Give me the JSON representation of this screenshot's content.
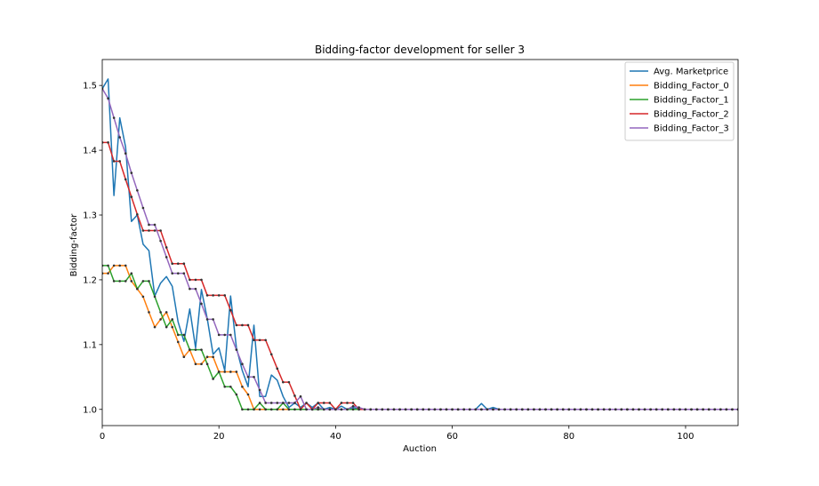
{
  "chart_data": {
    "type": "line",
    "title": "Bidding-factor development for seller 3",
    "xlabel": "Auction",
    "ylabel": "Bidding-factor",
    "xlim": [
      0,
      109
    ],
    "ylim": [
      0.975,
      1.54
    ],
    "xticks": [
      0,
      20,
      40,
      60,
      80,
      100
    ],
    "yticks": [
      1.0,
      1.1,
      1.2,
      1.3,
      1.4,
      1.5
    ],
    "xtick_labels": [
      "0",
      "20",
      "40",
      "60",
      "80",
      "100"
    ],
    "ytick_labels": [
      "1.0",
      "1.1",
      "1.2",
      "1.3",
      "1.4",
      "1.5"
    ],
    "grid": false,
    "legend_position": "top-right",
    "colors": {
      "Avg. Marketprice": "#1f77b4",
      "Bidding_Factor_0": "#ff7f0e",
      "Bidding_Factor_1": "#2ca02c",
      "Bidding_Factor_2": "#d62728",
      "Bidding_Factor_3": "#9467bd",
      "markers": "#333333"
    },
    "series": [
      {
        "name": "Avg. Marketprice",
        "markers": false,
        "points": [
          [
            0,
            1.495
          ],
          [
            1,
            1.51
          ],
          [
            2,
            1.33
          ],
          [
            3,
            1.45
          ],
          [
            4,
            1.405
          ],
          [
            5,
            1.29
          ],
          [
            6,
            1.3
          ],
          [
            7,
            1.255
          ],
          [
            8,
            1.245
          ],
          [
            9,
            1.175
          ],
          [
            10,
            1.195
          ],
          [
            11,
            1.205
          ],
          [
            12,
            1.19
          ],
          [
            13,
            1.135
          ],
          [
            14,
            1.105
          ],
          [
            15,
            1.155
          ],
          [
            16,
            1.095
          ],
          [
            17,
            1.185
          ],
          [
            18,
            1.14
          ],
          [
            19,
            1.085
          ],
          [
            20,
            1.095
          ],
          [
            21,
            1.06
          ],
          [
            22,
            1.175
          ],
          [
            23,
            1.095
          ],
          [
            24,
            1.06
          ],
          [
            25,
            1.035
          ],
          [
            26,
            1.13
          ],
          [
            27,
            1.02
          ],
          [
            28,
            1.02
          ],
          [
            29,
            1.053
          ],
          [
            30,
            1.045
          ],
          [
            31,
            1.02
          ],
          [
            32,
            1.003
          ],
          [
            33,
            1.01
          ],
          [
            34,
            1.003
          ],
          [
            35,
            1.01
          ],
          [
            36,
            1.003
          ],
          [
            37,
            1.01
          ],
          [
            38,
            1.0
          ],
          [
            39,
            1.003
          ],
          [
            40,
            1.0
          ],
          [
            41,
            1.005
          ],
          [
            42,
            1.0
          ],
          [
            43,
            1.003
          ],
          [
            44,
            1.0
          ],
          [
            64,
            1.0
          ],
          [
            65,
            1.009
          ],
          [
            66,
            1.0
          ],
          [
            67,
            1.003
          ],
          [
            68,
            1.0
          ],
          [
            109,
            1.0
          ]
        ]
      },
      {
        "name": "Bidding_Factor_0",
        "markers": true,
        "points": [
          [
            0,
            1.21
          ],
          [
            1,
            1.21
          ],
          [
            2,
            1.222
          ],
          [
            3,
            1.222
          ],
          [
            4,
            1.222
          ],
          [
            5,
            1.198
          ],
          [
            6,
            1.186
          ],
          [
            7,
            1.174
          ],
          [
            8,
            1.15
          ],
          [
            9,
            1.127
          ],
          [
            10,
            1.139
          ],
          [
            11,
            1.15
          ],
          [
            12,
            1.127
          ],
          [
            13,
            1.104
          ],
          [
            14,
            1.081
          ],
          [
            15,
            1.092
          ],
          [
            16,
            1.07
          ],
          [
            17,
            1.07
          ],
          [
            18,
            1.081
          ],
          [
            19,
            1.081
          ],
          [
            20,
            1.058
          ],
          [
            21,
            1.058
          ],
          [
            22,
            1.058
          ],
          [
            23,
            1.058
          ],
          [
            24,
            1.035
          ],
          [
            25,
            1.023
          ],
          [
            26,
            1.0
          ],
          [
            27,
            1.0
          ],
          [
            28,
            1.0
          ],
          [
            29,
            1.0
          ],
          [
            30,
            1.0
          ],
          [
            31,
            1.0
          ],
          [
            32,
            1.0
          ],
          [
            33,
            1.0
          ],
          [
            34,
            1.0
          ],
          [
            35,
            1.0
          ],
          [
            36,
            1.0
          ],
          [
            37,
            1.0
          ],
          [
            38,
            1.0
          ],
          [
            39,
            1.0
          ],
          [
            40,
            1.0
          ],
          [
            41,
            1.0
          ],
          [
            42,
            1.0
          ],
          [
            43,
            1.0
          ],
          [
            44,
            1.0
          ],
          [
            45,
            1.0
          ],
          [
            109,
            1.0
          ]
        ]
      },
      {
        "name": "Bidding_Factor_1",
        "markers": true,
        "points": [
          [
            0,
            1.222
          ],
          [
            1,
            1.222
          ],
          [
            2,
            1.198
          ],
          [
            3,
            1.198
          ],
          [
            4,
            1.198
          ],
          [
            5,
            1.21
          ],
          [
            6,
            1.186
          ],
          [
            7,
            1.198
          ],
          [
            8,
            1.198
          ],
          [
            9,
            1.174
          ],
          [
            10,
            1.15
          ],
          [
            11,
            1.127
          ],
          [
            12,
            1.139
          ],
          [
            13,
            1.115
          ],
          [
            14,
            1.115
          ],
          [
            15,
            1.092
          ],
          [
            16,
            1.092
          ],
          [
            17,
            1.092
          ],
          [
            18,
            1.07
          ],
          [
            19,
            1.047
          ],
          [
            20,
            1.058
          ],
          [
            21,
            1.035
          ],
          [
            22,
            1.035
          ],
          [
            23,
            1.023
          ],
          [
            24,
            1.0
          ],
          [
            25,
            1.0
          ],
          [
            26,
            1.0
          ],
          [
            27,
            1.01
          ],
          [
            28,
            1.0
          ],
          [
            29,
            1.0
          ],
          [
            30,
            1.0
          ],
          [
            31,
            1.01
          ],
          [
            32,
            1.0
          ],
          [
            33,
            1.0
          ],
          [
            34,
            1.0
          ],
          [
            35,
            1.0
          ],
          [
            36,
            1.0
          ],
          [
            37,
            1.0
          ],
          [
            38,
            1.0
          ],
          [
            39,
            1.0
          ],
          [
            40,
            1.0
          ],
          [
            109,
            1.0
          ]
        ]
      },
      {
        "name": "Bidding_Factor_2",
        "markers": true,
        "points": [
          [
            0,
            1.412
          ],
          [
            1,
            1.412
          ],
          [
            2,
            1.383
          ],
          [
            3,
            1.383
          ],
          [
            4,
            1.355
          ],
          [
            5,
            1.328
          ],
          [
            6,
            1.301
          ],
          [
            7,
            1.276
          ],
          [
            8,
            1.276
          ],
          [
            9,
            1.276
          ],
          [
            10,
            1.276
          ],
          [
            11,
            1.25
          ],
          [
            12,
            1.225
          ],
          [
            13,
            1.225
          ],
          [
            14,
            1.225
          ],
          [
            15,
            1.2
          ],
          [
            16,
            1.2
          ],
          [
            17,
            1.2
          ],
          [
            18,
            1.176
          ],
          [
            19,
            1.176
          ],
          [
            20,
            1.176
          ],
          [
            21,
            1.176
          ],
          [
            22,
            1.153
          ],
          [
            23,
            1.13
          ],
          [
            24,
            1.13
          ],
          [
            25,
            1.13
          ],
          [
            26,
            1.107
          ],
          [
            27,
            1.107
          ],
          [
            28,
            1.107
          ],
          [
            29,
            1.085
          ],
          [
            30,
            1.063
          ],
          [
            31,
            1.042
          ],
          [
            32,
            1.042
          ],
          [
            33,
            1.021
          ],
          [
            34,
            1.0
          ],
          [
            35,
            1.01
          ],
          [
            36,
            1.0
          ],
          [
            37,
            1.01
          ],
          [
            38,
            1.01
          ],
          [
            39,
            1.01
          ],
          [
            40,
            1.0
          ],
          [
            41,
            1.01
          ],
          [
            42,
            1.01
          ],
          [
            43,
            1.01
          ],
          [
            44,
            1.0
          ],
          [
            45,
            1.0
          ],
          [
            109,
            1.0
          ]
        ]
      },
      {
        "name": "Bidding_Factor_3",
        "markers": true,
        "points": [
          [
            0,
            1.495
          ],
          [
            1,
            1.48
          ],
          [
            2,
            1.45
          ],
          [
            3,
            1.42
          ],
          [
            4,
            1.395
          ],
          [
            5,
            1.365
          ],
          [
            6,
            1.338
          ],
          [
            7,
            1.311
          ],
          [
            8,
            1.285
          ],
          [
            9,
            1.285
          ],
          [
            10,
            1.26
          ],
          [
            11,
            1.235
          ],
          [
            12,
            1.21
          ],
          [
            13,
            1.21
          ],
          [
            14,
            1.21
          ],
          [
            15,
            1.186
          ],
          [
            16,
            1.186
          ],
          [
            17,
            1.163
          ],
          [
            18,
            1.139
          ],
          [
            19,
            1.139
          ],
          [
            20,
            1.115
          ],
          [
            21,
            1.115
          ],
          [
            22,
            1.115
          ],
          [
            23,
            1.092
          ],
          [
            24,
            1.07
          ],
          [
            25,
            1.05
          ],
          [
            26,
            1.05
          ],
          [
            27,
            1.03
          ],
          [
            28,
            1.01
          ],
          [
            29,
            1.01
          ],
          [
            30,
            1.01
          ],
          [
            31,
            1.01
          ],
          [
            32,
            1.01
          ],
          [
            33,
            1.01
          ],
          [
            34,
            1.02
          ],
          [
            35,
            1.0
          ],
          [
            36,
            1.0
          ],
          [
            37,
            1.003
          ],
          [
            38,
            1.0
          ],
          [
            39,
            1.0
          ],
          [
            40,
            1.0
          ],
          [
            41,
            1.0
          ],
          [
            42,
            1.0
          ],
          [
            43,
            1.005
          ],
          [
            44,
            1.003
          ],
          [
            45,
            1.0
          ],
          [
            109,
            1.0
          ]
        ]
      }
    ]
  }
}
